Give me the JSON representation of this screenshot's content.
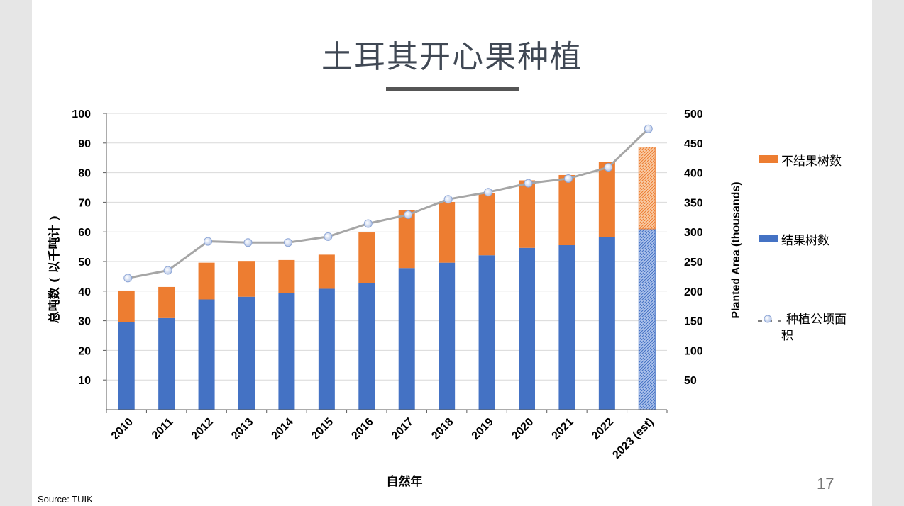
{
  "slide": {
    "title": "土耳其开心果种植",
    "page_number": "17",
    "source": "Source: TUIK"
  },
  "chart_data": {
    "type": "bar",
    "stacked": true,
    "categories": [
      "2010",
      "2011",
      "2012",
      "2013",
      "2014",
      "2015",
      "2016",
      "2017",
      "2018",
      "2019",
      "2020",
      "2021",
      "2022",
      "2023 (est)"
    ],
    "series": [
      {
        "name": "结果树数",
        "axis": "left",
        "color": "#4472c4",
        "values": [
          29.6,
          30.9,
          37.2,
          38.1,
          39.3,
          40.8,
          42.6,
          47.8,
          49.6,
          52.1,
          54.6,
          55.5,
          58.3,
          61.0
        ]
      },
      {
        "name": "不结果树数",
        "axis": "left",
        "color": "#ed7d31",
        "values": [
          10.6,
          10.5,
          12.4,
          12.1,
          11.2,
          11.5,
          17.2,
          19.6,
          20.5,
          21.0,
          22.8,
          23.7,
          25.4,
          27.6
        ]
      },
      {
        "name": "种植公顷面积",
        "type": "line",
        "axis": "right",
        "color": "#a6a6a6",
        "values": [
          222,
          235,
          284,
          282,
          282,
          292,
          314,
          329,
          355,
          367,
          382,
          390,
          409,
          474
        ]
      }
    ],
    "hatched_category": "2023 (est)",
    "xlabel": "自然年",
    "ylabel_left": "总吨数 ( 以千吨计 )",
    "ylabel_right": "Planted Area (thousands)",
    "ylim_left": [
      0,
      100
    ],
    "ylim_right": [
      0,
      500
    ],
    "yticks_left": [
      "10",
      "20",
      "30",
      "40",
      "50",
      "60",
      "70",
      "80",
      "90",
      "100"
    ],
    "yticks_right": [
      "50",
      "100",
      "150",
      "200",
      "250",
      "300",
      "350",
      "400",
      "450",
      "500"
    ],
    "grid": true,
    "legend_position": "right",
    "legend": [
      {
        "label": "不结果树数",
        "kind": "bar",
        "color": "#ed7d31"
      },
      {
        "label": "结果树数",
        "kind": "bar",
        "color": "#4472c4"
      },
      {
        "label_line1": "种植公顷面",
        "label_line2": "积",
        "kind": "line",
        "color": "#a6a6a6"
      }
    ]
  }
}
